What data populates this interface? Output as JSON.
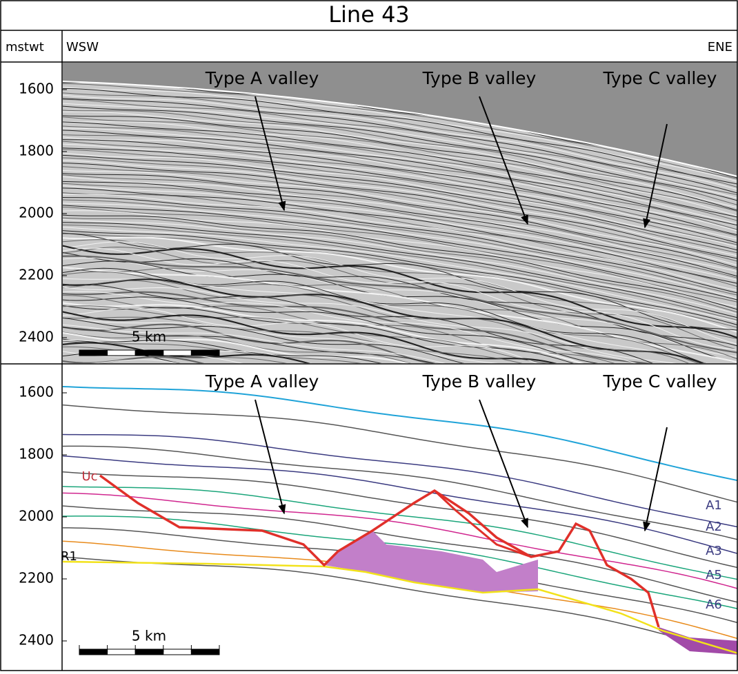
{
  "title": "Line 43",
  "header": {
    "axis_unit": "mstwt",
    "left_direction": "WSW",
    "right_direction": "ENE"
  },
  "top_panel": {
    "y_ticks": [
      1600,
      1800,
      2000,
      2200,
      2400
    ],
    "annotations": [
      "Type A valley",
      "Type B valley",
      "Type C valley"
    ],
    "scale_bar": "5 km"
  },
  "bottom_panel": {
    "y_ticks": [
      1600,
      1800,
      2000,
      2200,
      2400
    ],
    "annotations": [
      "Type A valley",
      "Type B valley",
      "Type C valley"
    ],
    "scale_bar": "5 km",
    "horizon_labels": [
      "Uc",
      "R1",
      "A1",
      "A2",
      "A3",
      "A5",
      "A6"
    ]
  }
}
